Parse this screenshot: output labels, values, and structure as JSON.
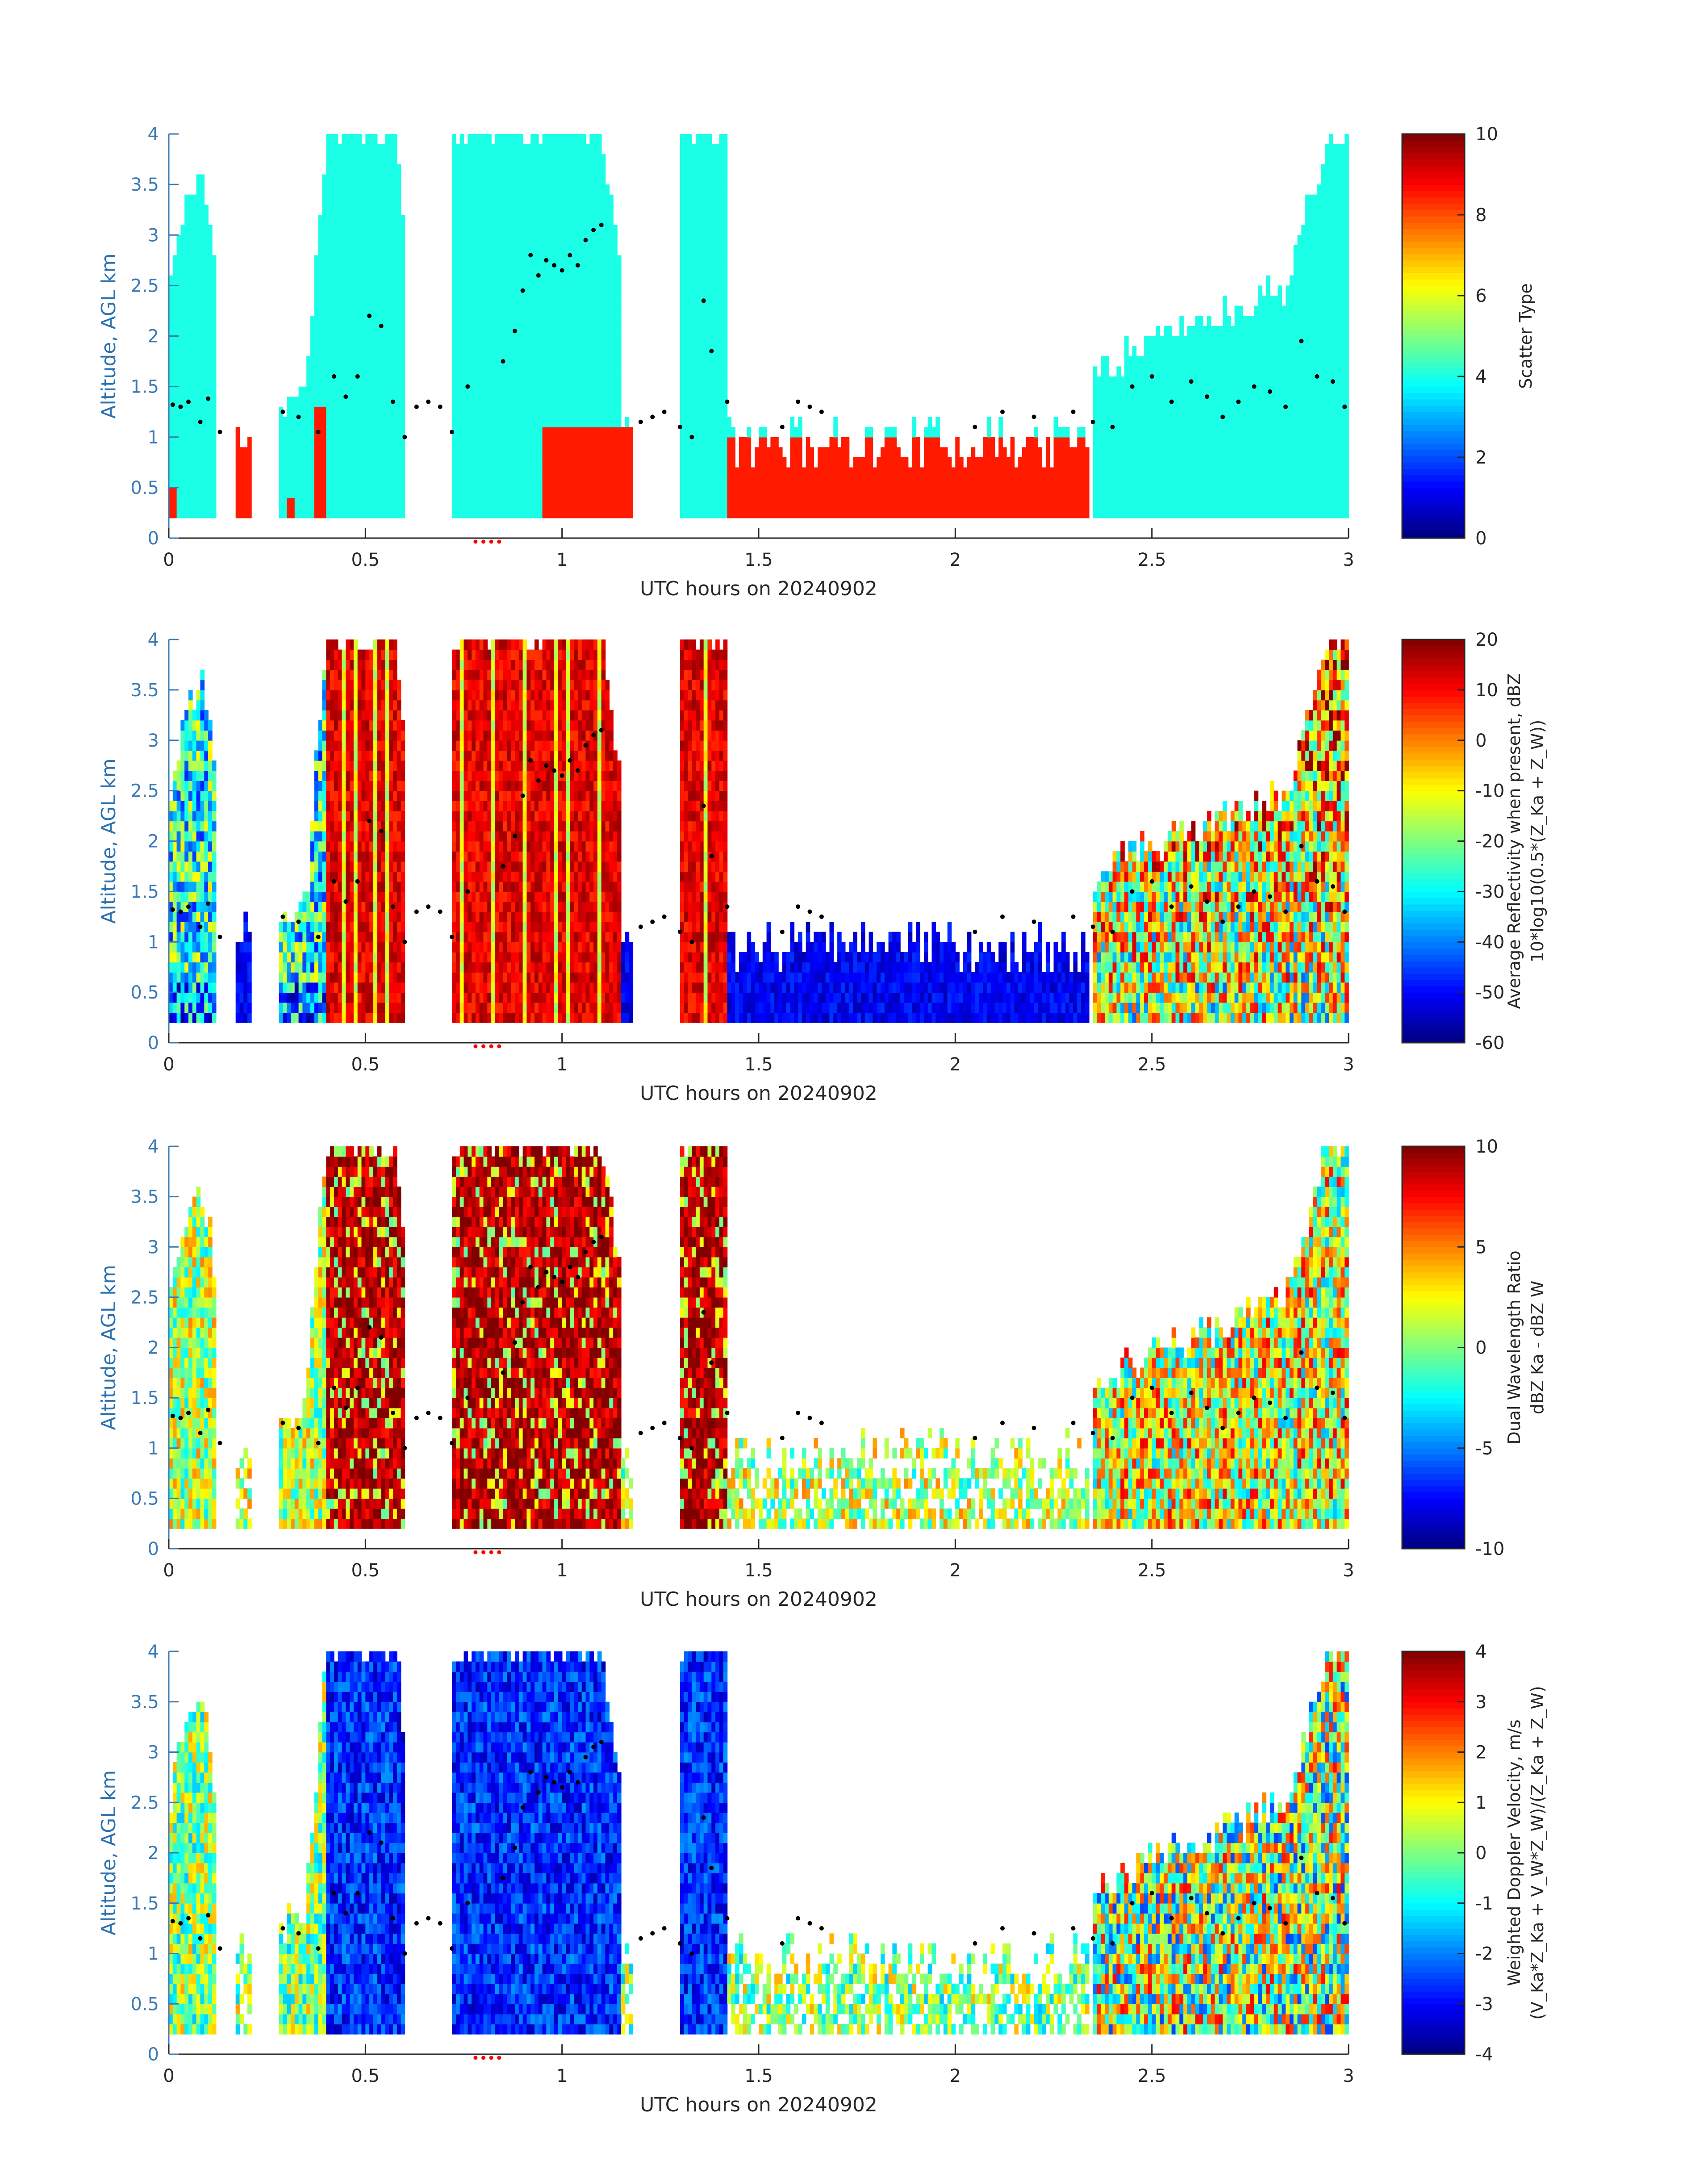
{
  "figure": {
    "date": "20240902"
  },
  "chart_data": [
    {
      "type": "heatmap",
      "title": "",
      "xlabel": "UTC hours on 20240902",
      "ylabel": "Altitude, AGL km",
      "xlim": [
        0,
        3
      ],
      "ylim": [
        0,
        4
      ],
      "xticks": [
        "0",
        "0.5",
        "1",
        "1.5",
        "2",
        "2.5",
        "3"
      ],
      "yticks": [
        "0",
        "0.5",
        "1",
        "1.5",
        "2",
        "2.5",
        "3",
        "3.5",
        "4"
      ],
      "colorbar": {
        "label_lines": [
          "Scatter Type"
        ],
        "clim": [
          0,
          10
        ],
        "ticks": [
          "0",
          "2",
          "4",
          "6",
          "8",
          "10"
        ]
      },
      "categories": {
        "cloud_value": 4,
        "precip_value": 8.5
      },
      "variable": "scatter",
      "seed": 11
    },
    {
      "type": "heatmap",
      "title": "",
      "xlabel": "UTC hours on 20240902",
      "ylabel": "Altitude, AGL km",
      "xlim": [
        0,
        3
      ],
      "ylim": [
        0,
        4
      ],
      "xticks": [
        "0",
        "0.5",
        "1",
        "1.5",
        "2",
        "2.5",
        "3"
      ],
      "yticks": [
        "0",
        "0.5",
        "1",
        "1.5",
        "2",
        "2.5",
        "3",
        "3.5",
        "4"
      ],
      "colorbar": {
        "label_lines": [
          "Average Reflectivity when present, dBZ",
          "10*log10(0.5*(Z_Ka + Z_W))"
        ],
        "clim": [
          -60,
          20
        ],
        "ticks": [
          "-60",
          "-50",
          "-40",
          "-30",
          "-20",
          "-10",
          "0",
          "10",
          "20"
        ]
      },
      "variable": "reflectivity",
      "seed": 23
    },
    {
      "type": "heatmap",
      "title": "",
      "xlabel": "UTC hours on 20240902",
      "ylabel": "Altitude, AGL km",
      "xlim": [
        0,
        3
      ],
      "ylim": [
        0,
        4
      ],
      "xticks": [
        "0",
        "0.5",
        "1",
        "1.5",
        "2",
        "2.5",
        "3"
      ],
      "yticks": [
        "0",
        "0.5",
        "1",
        "1.5",
        "2",
        "2.5",
        "3",
        "3.5",
        "4"
      ],
      "colorbar": {
        "label_lines": [
          "Dual Wavelength Ratio",
          "dBZ Ka - dBZ W"
        ],
        "clim": [
          -10,
          10
        ],
        "ticks": [
          "-10",
          "-5",
          "0",
          "5",
          "10"
        ]
      },
      "variable": "dwr",
      "seed": 37
    },
    {
      "type": "heatmap",
      "title": "",
      "xlabel": "UTC hours on 20240902",
      "ylabel": "Altitude, AGL km",
      "xlim": [
        0,
        3
      ],
      "ylim": [
        0,
        4
      ],
      "xticks": [
        "0",
        "0.5",
        "1",
        "1.5",
        "2",
        "2.5",
        "3"
      ],
      "yticks": [
        "0",
        "0.5",
        "1",
        "1.5",
        "2",
        "2.5",
        "3",
        "3.5",
        "4"
      ],
      "colorbar": {
        "label_lines": [
          "Weighted Doppler Velocity, m/s",
          "(V_Ka*Z_Ka + V_W*Z_W)/(Z_Ka + Z_W)"
        ],
        "clim": [
          -4,
          4
        ],
        "ticks": [
          "-4",
          "-3",
          "-2",
          "-1",
          "0",
          "1",
          "2",
          "3",
          "4"
        ]
      },
      "variable": "velocity",
      "seed": 53
    }
  ],
  "shared": {
    "time_step_hours": 0.01,
    "altitude_step_km": 0.1,
    "min_altitude_km": 0.2,
    "clouds": [
      {
        "t0": 0.0,
        "t1": 0.12,
        "kind": "low_stratus"
      },
      {
        "t0": 0.28,
        "t1": 0.4,
        "kind": "low_stratus"
      },
      {
        "t0": 0.4,
        "t1": 0.6,
        "kind": "deep_column"
      },
      {
        "t0": 0.72,
        "t1": 1.15,
        "kind": "deep_column"
      },
      {
        "t0": 1.3,
        "t1": 1.42,
        "kind": "deep_column"
      },
      {
        "t0": 2.35,
        "t1": 3.0,
        "kind": "rising_layer"
      }
    ],
    "cloud_top_km": [
      [
        0.0,
        2.4
      ],
      [
        0.03,
        3.0
      ],
      [
        0.06,
        3.4
      ],
      [
        0.08,
        3.6
      ],
      [
        0.11,
        3.0
      ],
      [
        0.13,
        1.6
      ],
      [
        0.17,
        1.0
      ],
      [
        0.2,
        0.8
      ],
      [
        0.28,
        1.2
      ],
      [
        0.35,
        1.4
      ],
      [
        0.4,
        4.0
      ],
      [
        0.58,
        4.0
      ],
      [
        0.6,
        2.8
      ],
      [
        0.65,
        2.0
      ],
      [
        0.7,
        1.5
      ],
      [
        0.72,
        4.0
      ],
      [
        1.1,
        4.0
      ],
      [
        1.15,
        2.6
      ],
      [
        1.2,
        1.5
      ],
      [
        1.28,
        1.3
      ],
      [
        1.3,
        4.0
      ],
      [
        1.42,
        4.0
      ],
      [
        1.45,
        1.4
      ],
      [
        1.55,
        1.3
      ],
      [
        1.65,
        1.5
      ],
      [
        1.75,
        1.1
      ],
      [
        1.85,
        0.9
      ],
      [
        1.95,
        0.8
      ],
      [
        2.05,
        1.1
      ],
      [
        2.15,
        1.3
      ],
      [
        2.3,
        1.4
      ],
      [
        2.4,
        1.7
      ],
      [
        2.55,
        2.0
      ],
      [
        2.7,
        2.2
      ],
      [
        2.85,
        2.5
      ],
      [
        2.95,
        4.0
      ],
      [
        3.0,
        4.0
      ]
    ],
    "precip_regions": [
      {
        "t0": 0.0,
        "t1": 0.02,
        "top_km": 0.5
      },
      {
        "t0": 0.17,
        "t1": 0.21,
        "top_km": 1.0
      },
      {
        "t0": 0.3,
        "t1": 0.32,
        "top_km": 0.4
      },
      {
        "t0": 0.37,
        "t1": 0.4,
        "top_km": 1.3
      },
      {
        "t0": 0.95,
        "t1": 1.18,
        "top_km": 1.0
      },
      {
        "t0": 1.42,
        "t1": 2.34,
        "top_km": 0.9
      }
    ],
    "overlay_points": [
      [
        0.01,
        1.32
      ],
      [
        0.03,
        1.3
      ],
      [
        0.05,
        1.35
      ],
      [
        0.08,
        1.15
      ],
      [
        0.1,
        1.38
      ],
      [
        0.13,
        1.05
      ],
      [
        0.29,
        1.25
      ],
      [
        0.33,
        1.2
      ],
      [
        0.38,
        1.05
      ],
      [
        0.42,
        1.6
      ],
      [
        0.45,
        1.4
      ],
      [
        0.48,
        1.6
      ],
      [
        0.51,
        2.2
      ],
      [
        0.54,
        2.1
      ],
      [
        0.57,
        1.35
      ],
      [
        0.6,
        1.0
      ],
      [
        0.63,
        1.3
      ],
      [
        0.66,
        1.35
      ],
      [
        0.69,
        1.3
      ],
      [
        0.72,
        1.05
      ],
      [
        0.76,
        1.5
      ],
      [
        0.85,
        1.75
      ],
      [
        0.88,
        2.05
      ],
      [
        0.9,
        2.45
      ],
      [
        0.92,
        2.8
      ],
      [
        0.94,
        2.6
      ],
      [
        0.96,
        2.75
      ],
      [
        0.98,
        2.7
      ],
      [
        1.0,
        2.65
      ],
      [
        1.02,
        2.8
      ],
      [
        1.04,
        2.7
      ],
      [
        1.06,
        2.95
      ],
      [
        1.08,
        3.05
      ],
      [
        1.1,
        3.1
      ],
      [
        1.2,
        1.15
      ],
      [
        1.23,
        1.2
      ],
      [
        1.26,
        1.25
      ],
      [
        1.3,
        1.1
      ],
      [
        1.33,
        1.0
      ],
      [
        1.36,
        2.35
      ],
      [
        1.38,
        1.85
      ],
      [
        1.42,
        1.35
      ],
      [
        1.56,
        1.1
      ],
      [
        1.6,
        1.35
      ],
      [
        1.63,
        1.3
      ],
      [
        1.66,
        1.25
      ],
      [
        2.05,
        1.1
      ],
      [
        2.12,
        1.25
      ],
      [
        2.2,
        1.2
      ],
      [
        2.3,
        1.25
      ],
      [
        2.35,
        1.15
      ],
      [
        2.4,
        1.1
      ],
      [
        2.45,
        1.5
      ],
      [
        2.5,
        1.6
      ],
      [
        2.55,
        1.35
      ],
      [
        2.6,
        1.55
      ],
      [
        2.64,
        1.4
      ],
      [
        2.68,
        1.2
      ],
      [
        2.72,
        1.35
      ],
      [
        2.76,
        1.5
      ],
      [
        2.8,
        1.45
      ],
      [
        2.84,
        1.3
      ],
      [
        2.88,
        1.95
      ],
      [
        2.92,
        1.6
      ],
      [
        2.96,
        1.55
      ],
      [
        2.99,
        1.3
      ]
    ],
    "marker_times_hours": [
      0.78,
      0.8,
      0.82,
      0.84
    ]
  }
}
